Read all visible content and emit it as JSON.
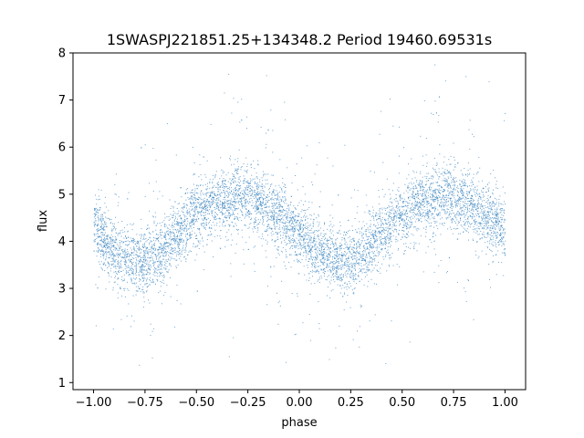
{
  "chart_data": {
    "type": "scatter",
    "title": "1SWASPJ221851.25+134348.2 Period 19460.69531s",
    "xlabel": "phase",
    "ylabel": "flux",
    "xlim": [
      -1.1,
      1.1
    ],
    "ylim": [
      0.85,
      8.0
    ],
    "xticks": [
      -1.0,
      -0.75,
      -0.5,
      -0.25,
      0.0,
      0.25,
      0.5,
      0.75,
      1.0
    ],
    "xtick_labels": [
      "−1.00",
      "−0.75",
      "−0.50",
      "−0.25",
      "0.00",
      "0.25",
      "0.50",
      "0.75",
      "1.00"
    ],
    "yticks": [
      1,
      2,
      3,
      4,
      5,
      6,
      7,
      8
    ],
    "ytick_labels": [
      "1",
      "2",
      "3",
      "4",
      "5",
      "6",
      "7",
      "8"
    ],
    "grid": false,
    "marker_color": "#3d85c0",
    "series": [
      {
        "x": [
          -1.0,
          -0.9,
          -0.8,
          -0.7,
          -0.6,
          -0.5,
          -0.4,
          -0.3,
          -0.2,
          -0.1,
          0.0,
          0.1,
          0.2,
          0.3,
          0.4,
          0.5,
          0.6,
          0.7,
          0.8,
          0.9,
          1.0
        ],
        "y": [
          4.3,
          3.8,
          3.55,
          3.7,
          4.15,
          4.6,
          4.85,
          4.95,
          4.85,
          4.55,
          4.1,
          3.75,
          3.55,
          3.75,
          4.2,
          4.55,
          4.8,
          4.95,
          4.85,
          4.6,
          4.3
        ]
      }
    ]
  }
}
